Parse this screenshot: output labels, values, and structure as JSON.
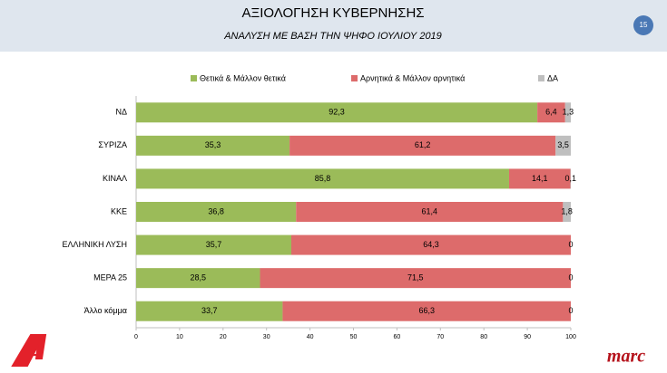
{
  "page_number": "15",
  "logo": "marc",
  "chart_data": {
    "type": "stacked-barh",
    "title": "ΑΞΙΟΛΟΓΗΣΗ ΚΥΒΕΡΝΗΣΗΣ",
    "subtitle": "ΑΝΑΛΥΣΗ ΜΕ ΒΑΣΗ ΤΗΝ ΨΗΦΟ ΙΟΥΛΙΟΥ 2019",
    "categories": [
      "ΝΔ",
      "ΣΥΡΙΖΑ",
      "ΚΙΝΑΛ",
      "ΚΚΕ",
      "ΕΛΛΗΝΙΚΗ ΛΥΣΗ",
      "ΜΕΡΑ 25",
      "Άλλο κόμμα"
    ],
    "series": [
      {
        "name": "Θετικά & Μάλλον θετικά",
        "color": "#9bbb59",
        "values": [
          92.3,
          35.3,
          85.8,
          36.8,
          35.7,
          28.5,
          33.7
        ],
        "value_labels": [
          "92,3",
          "35,3",
          "85,8",
          "36,8",
          "35,7",
          "28,5",
          "33,7"
        ]
      },
      {
        "name": "Αρνητικά & Μάλλον αρνητικά",
        "color": "#dd6b6b",
        "values": [
          6.4,
          61.2,
          14.1,
          61.4,
          64.3,
          71.5,
          66.3
        ],
        "value_labels": [
          "6,4",
          "61,2",
          "14,1",
          "61,4",
          "64,3",
          "71,5",
          "66,3"
        ]
      },
      {
        "name": "ΔΑ",
        "color": "#bfbfbf",
        "values": [
          1.3,
          3.5,
          0.1,
          1.8,
          0,
          0,
          0
        ],
        "value_labels": [
          "1,3",
          "3,5",
          "0,1",
          "1,8",
          "0",
          "0",
          "0"
        ]
      }
    ],
    "xlim": [
      0,
      100
    ],
    "xticks": [
      0,
      10,
      20,
      30,
      40,
      50,
      60,
      70,
      80,
      90,
      100
    ],
    "legend": "top"
  }
}
